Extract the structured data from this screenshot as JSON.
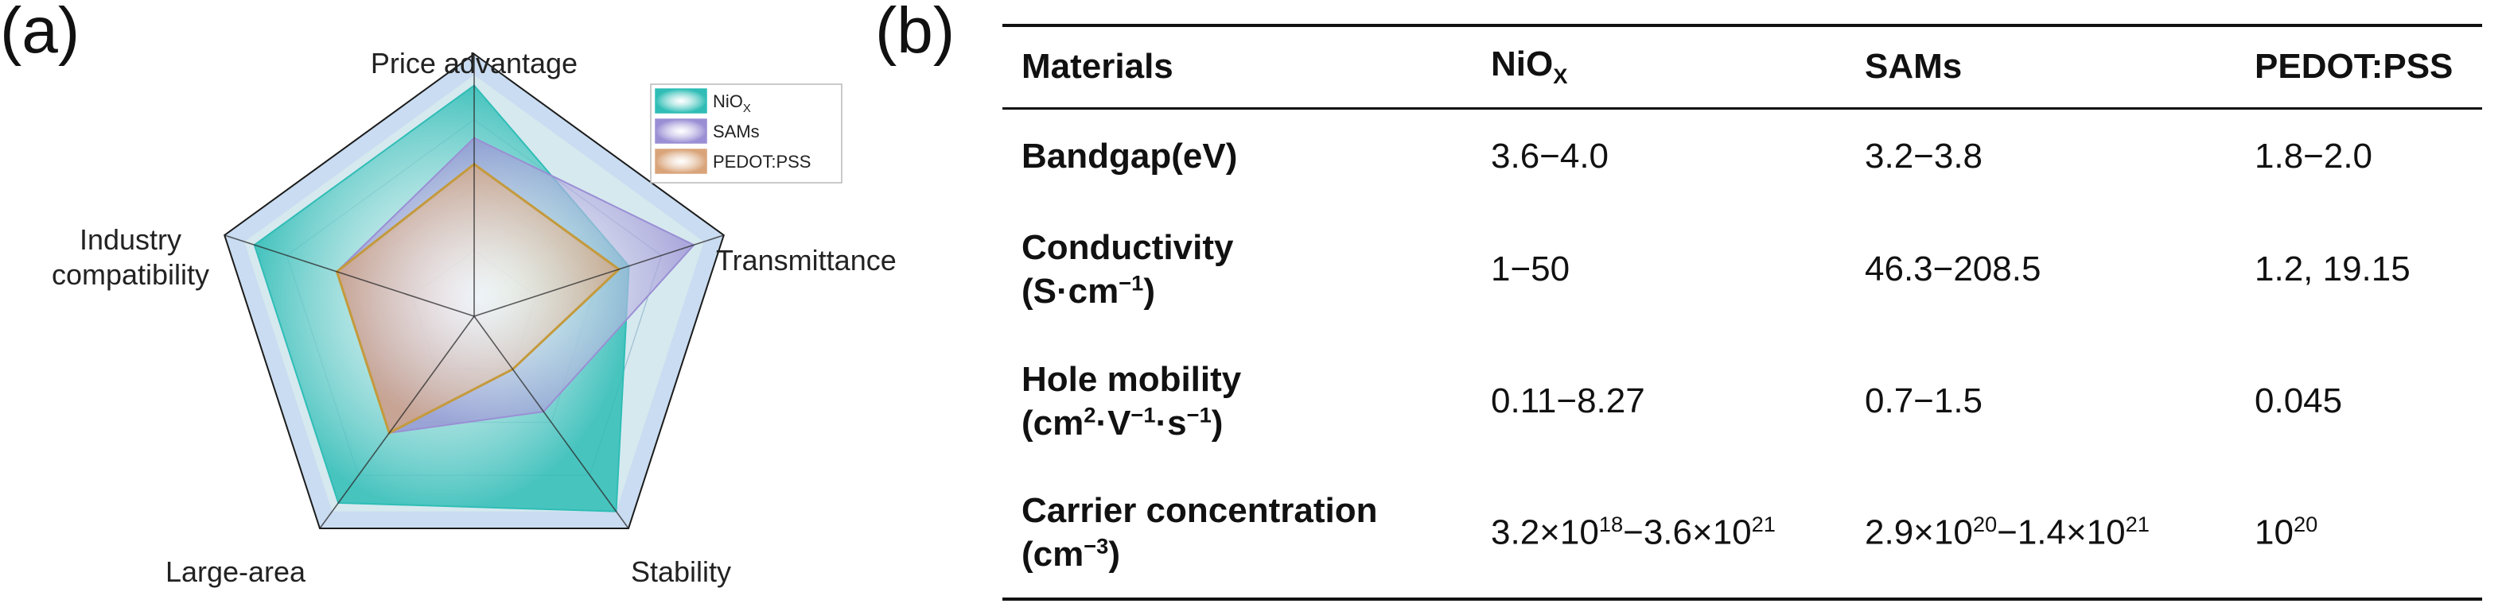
{
  "panel_a_label": "(a)",
  "panel_b_label": "(b)",
  "chart_data": {
    "type": "radar",
    "axes": [
      "Price advantage",
      "Transmittance",
      "Stability",
      "Large-area",
      "Industry compatibility"
    ],
    "axis_label_lines": [
      [
        "Price advantage"
      ],
      [
        "Transmittance"
      ],
      [
        "Stability"
      ],
      [
        "Large-area"
      ],
      [
        "Industry",
        "compatibility"
      ]
    ],
    "scale": [
      0,
      1
    ],
    "rings": [
      0.25,
      0.5,
      0.75,
      1.0
    ],
    "series": [
      {
        "name": "NiOX",
        "values": [
          0.88,
          0.62,
          0.92,
          0.88,
          0.88
        ],
        "color": "#2fbdb6"
      },
      {
        "name": "SAMs",
        "values": [
          0.68,
          0.88,
          0.45,
          0.55,
          0.55
        ],
        "color": "#9a8fd4"
      },
      {
        "name": "PEDOT:PSS",
        "values": [
          0.58,
          0.58,
          0.25,
          0.55,
          0.55
        ],
        "color": "#d9a47a"
      }
    ],
    "legend_labels": [
      {
        "main": "NiO",
        "sub": "X"
      },
      {
        "main": "SAMs",
        "sub": ""
      },
      {
        "main": "PEDOT:PSS",
        "sub": ""
      }
    ],
    "legend_position": "top-right"
  },
  "table": {
    "headers": {
      "materials": "Materials",
      "nio_main": "NiO",
      "nio_sub": "X",
      "sams": "SAMs",
      "pedot": "PEDOT:PSS"
    },
    "rows": [
      {
        "label": "Bandgap(eV)",
        "nio": "3.6−4.0",
        "sams": "3.2−3.8",
        "pedot": "1.8−2.0"
      },
      {
        "label_line1": "Conductivity",
        "nio": "1−50",
        "sams": "46.3−208.5",
        "pedot": "1.2, 19.15"
      },
      {
        "label_line1": "Hole mobility",
        "nio": "0.11−8.27",
        "sams": "0.7−1.5",
        "pedot": "0.045"
      },
      {
        "label_line1": "Carrier concentration"
      }
    ]
  }
}
